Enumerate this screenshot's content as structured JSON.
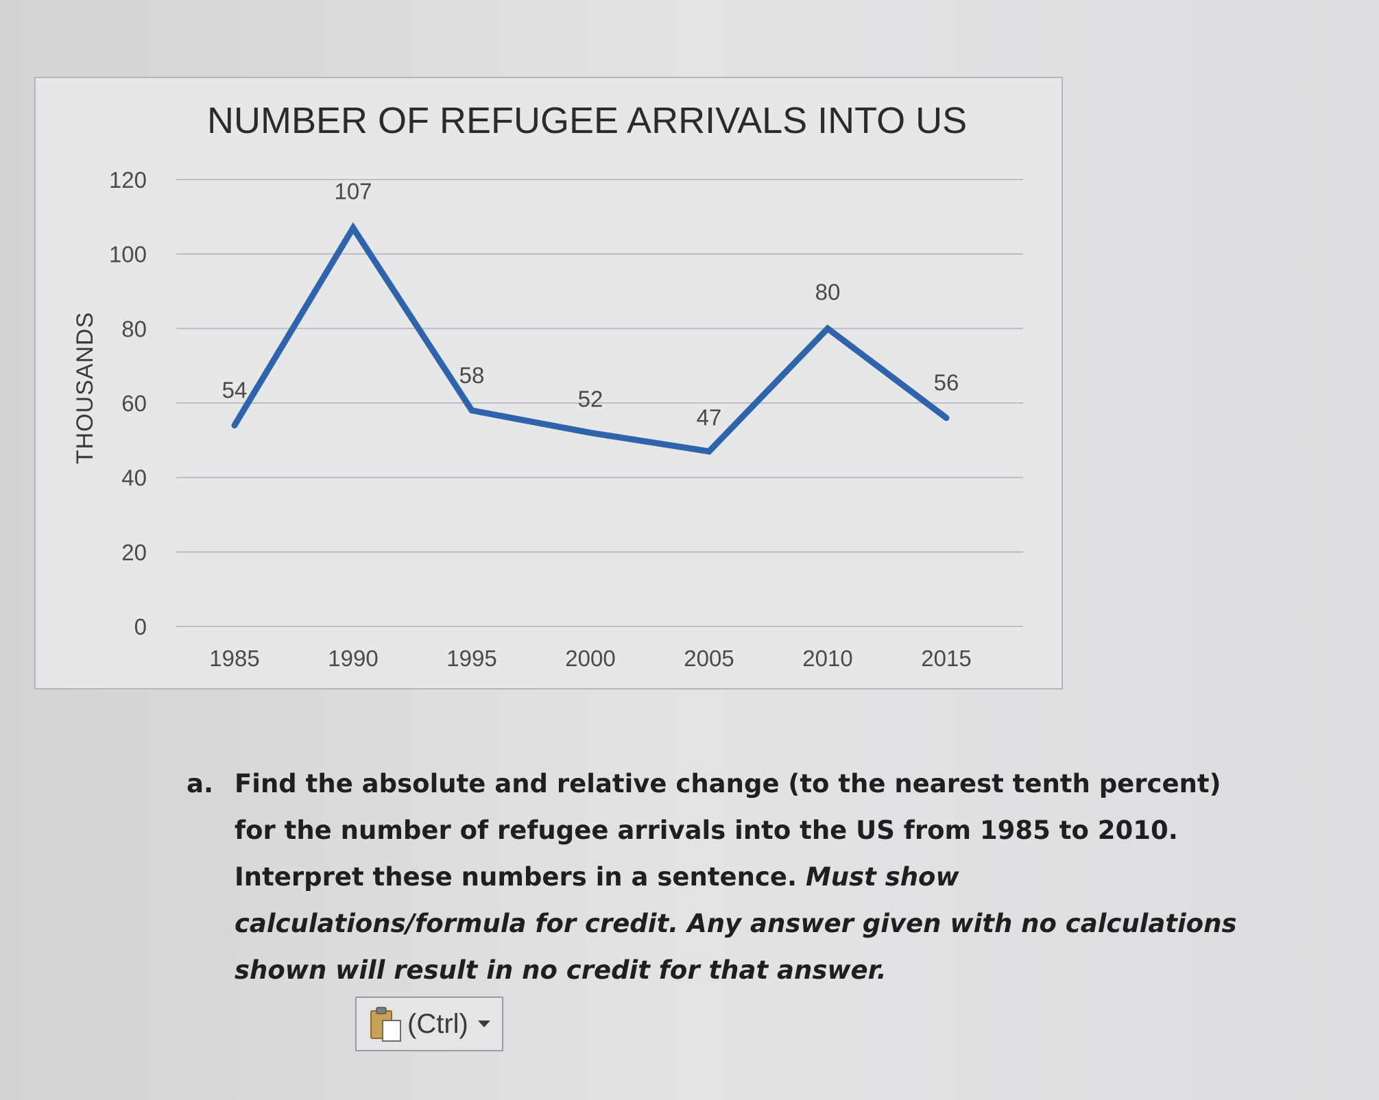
{
  "chart_data": {
    "type": "line",
    "title": "NUMBER OF REFUGEE ARRIVALS INTO US",
    "xlabel": "",
    "ylabel": "THOUSANDS",
    "categories": [
      "1985",
      "1990",
      "1995",
      "2000",
      "2005",
      "2010",
      "2015"
    ],
    "series": [
      {
        "name": "Refugee arrivals",
        "values": [
          54,
          107,
          58,
          52,
          47,
          80,
          56
        ]
      }
    ],
    "data_labels": [
      "54",
      "107",
      "58",
      "52",
      "47",
      "80",
      "56"
    ],
    "yticks": [
      "0",
      "20",
      "40",
      "60",
      "80",
      "100",
      "120"
    ],
    "ylim": [
      0,
      120
    ],
    "grid": true,
    "legend": "none",
    "line_color": "#2f64ad"
  },
  "question": {
    "marker": "a.",
    "text": "Find the absolute and relative change (to the nearest tenth percent) for the number of refugee arrivals into the US from 1985 to 2010. Interpret these numbers in a sentence.",
    "emphasis": "Must show calculations/formula for credit. Any answer given with no calculations shown will result in no credit for that answer."
  },
  "paste_options": {
    "label": "(Ctrl)",
    "icon": "clipboard-icon",
    "dropdown_icon": "caret-down-icon"
  }
}
